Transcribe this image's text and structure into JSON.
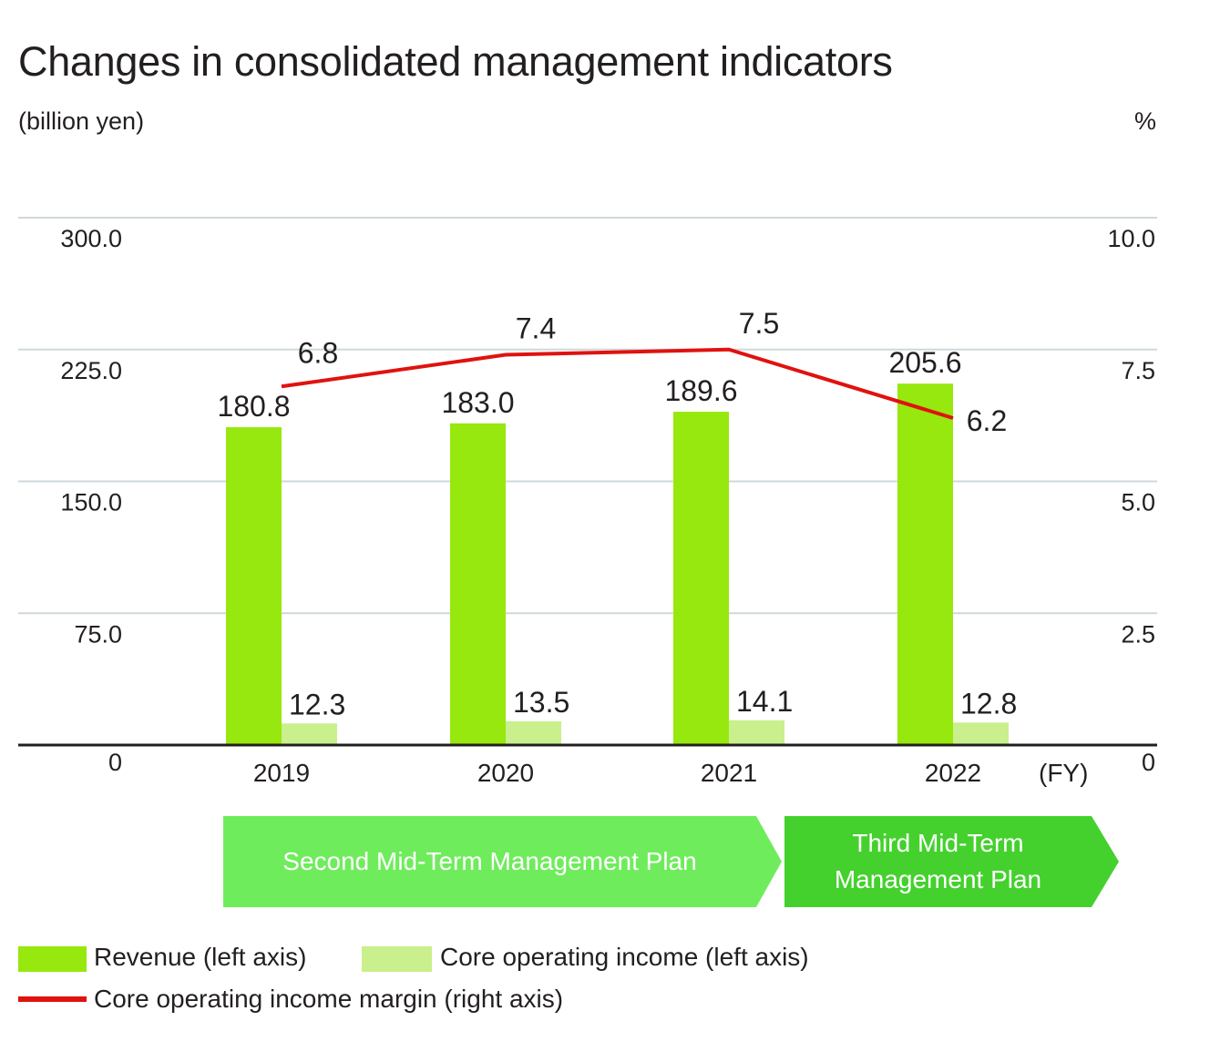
{
  "title": "Changes in consolidated management indicators",
  "unit_left": "(billion yen)",
  "unit_right": "%",
  "colors": {
    "revenue": "#96e80e",
    "core_income": "#c9f08c",
    "margin": "#e0120f",
    "grid": "#cfd8dc",
    "plan_second": "#6fec5c",
    "plan_third": "#44d12e"
  },
  "chart_data": {
    "type": "bar",
    "categories": [
      "2019",
      "2020",
      "2021",
      "2022"
    ],
    "x_unit": "(FY)",
    "left_axis": {
      "ylim": [
        0,
        300
      ],
      "ticks": [
        "0",
        "75.0",
        "150.0",
        "225.0",
        "300.0"
      ]
    },
    "right_axis": {
      "ylim": [
        0,
        10
      ],
      "ticks": [
        "0",
        "2.5",
        "5.0",
        "7.5",
        "10.0"
      ]
    },
    "series": [
      {
        "name": "Revenue (left axis)",
        "type": "bar",
        "axis": "left",
        "values": [
          180.8,
          183.0,
          189.6,
          205.6
        ],
        "labels": [
          "180.8",
          "183.0",
          "189.6",
          "205.6"
        ]
      },
      {
        "name": "Core operating income (left axis)",
        "type": "bar",
        "axis": "left",
        "values": [
          12.3,
          13.5,
          14.1,
          12.8
        ],
        "labels": [
          "12.3",
          "13.5",
          "14.1",
          "12.8"
        ]
      },
      {
        "name": "Core operating income margin (right axis)",
        "type": "line",
        "axis": "right",
        "values": [
          6.8,
          7.4,
          7.5,
          6.2
        ],
        "labels": [
          "6.8",
          "7.4",
          "7.5",
          "6.2"
        ]
      }
    ],
    "grid": true
  },
  "plans": {
    "second": "Second Mid-Term Management Plan",
    "third": "Third Mid-Term Management Plan"
  },
  "legend": {
    "revenue": "Revenue (left axis)",
    "core_income": "Core operating income (left axis)",
    "margin": "Core operating income margin (right axis)"
  }
}
